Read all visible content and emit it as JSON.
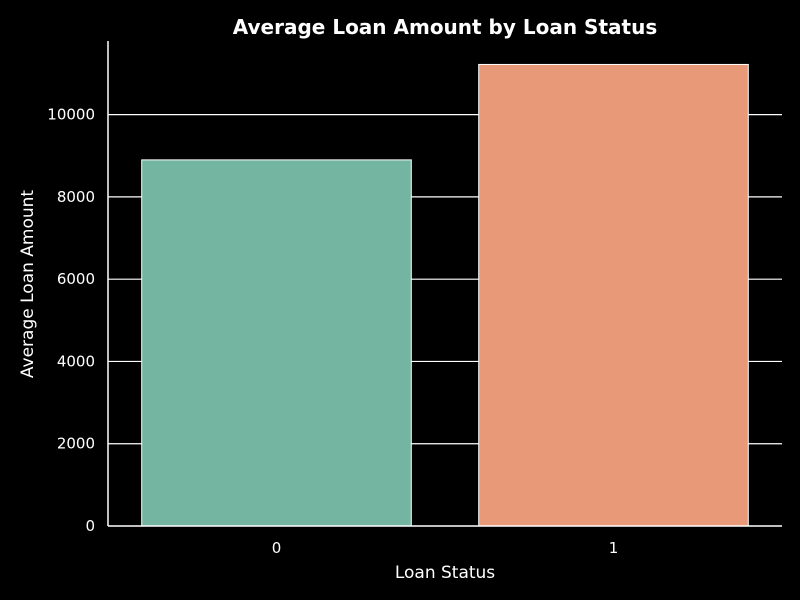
{
  "chart_data": {
    "type": "bar",
    "title": "Average Loan Amount by Loan Status",
    "xlabel": "Loan Status",
    "ylabel": "Average Loan Amount",
    "categories": [
      "0",
      "1"
    ],
    "values": [
      8900,
      11220
    ],
    "ylim": [
      0,
      11790
    ],
    "yticks": [
      0,
      2000,
      4000,
      6000,
      8000,
      10000
    ],
    "ytick_labels": [
      "0",
      "2000",
      "4000",
      "6000",
      "8000",
      "10000"
    ],
    "grid": "horizontal",
    "colors": {
      "background": "#000000",
      "text": "#ffffff",
      "bars": [
        "#73b5a0",
        "#e89a78"
      ],
      "bar_edge": "#ffffff",
      "grid": "#ffffff"
    }
  }
}
